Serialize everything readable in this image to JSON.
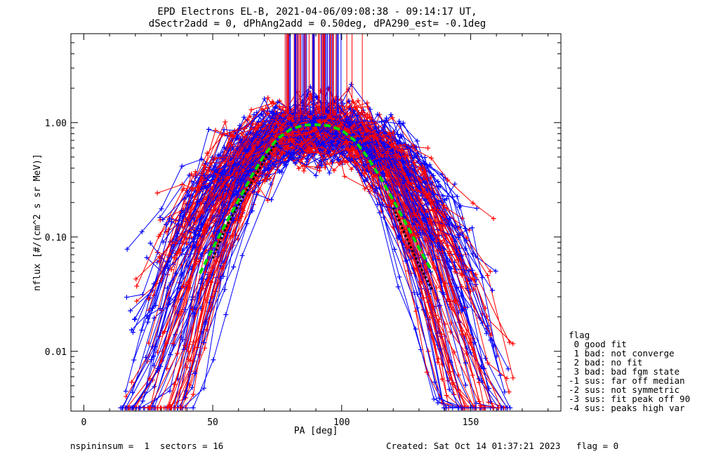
{
  "chart_data": {
    "type": "scatter",
    "title": [
      "EPD Electrons EL-B, 2021-04-06/09:08:38 - 09:14:17 UT,",
      "dSectr2add = 0, dPhAng2add = 0.50deg, dPA290_est=  -0.1deg"
    ],
    "xlabel": "PA [deg]",
    "ylabel": "nflux [#/(cm^2 s sr MeV)]",
    "xlim": [
      -5,
      185
    ],
    "ylim": [
      0.003,
      6
    ],
    "yscale": "log",
    "x_ticks": [
      0,
      50,
      100,
      150
    ],
    "x_tick_labels": [
      "0",
      "50",
      "100",
      "150"
    ],
    "y_ticks": [
      0.01,
      0.1,
      1.0
    ],
    "y_tick_labels": [
      "0.01",
      "0.10",
      "1.00"
    ],
    "grid": false,
    "series": [
      {
        "color": "#ff0000",
        "marker": "+",
        "note": "many PA-sector traces"
      },
      {
        "color": "#0000ff",
        "marker": "+",
        "note": "many PA-sector traces"
      },
      {
        "color": "#00dd00",
        "style": "dashed",
        "x": [
          45,
          50,
          55,
          60,
          65,
          70,
          75,
          80,
          85,
          90,
          95,
          100,
          105,
          110,
          115,
          120,
          125,
          130,
          135
        ],
        "y": [
          0.048,
          0.08,
          0.13,
          0.21,
          0.34,
          0.52,
          0.72,
          0.87,
          0.95,
          0.96,
          0.94,
          0.86,
          0.7,
          0.5,
          0.33,
          0.21,
          0.13,
          0.08,
          0.05
        ]
      },
      {
        "color": "#000000",
        "style": "dotted",
        "x": [
          50,
          55,
          60,
          65,
          70,
          75,
          120,
          125,
          130,
          135
        ],
        "y": [
          0.065,
          0.12,
          0.19,
          0.3,
          0.47,
          0.68,
          0.18,
          0.1,
          0.057,
          0.035
        ]
      }
    ],
    "legend": {
      "title": "flag",
      "entries": [
        " 0 good fit",
        " 1 bad: not converge",
        " 2 bad: no fit",
        " 3 bad: bad fgm state",
        "-1 sus: far off median",
        "-2 sus: not symmetric",
        "-3 sus: fit peak off 90",
        "-4 sus: peaks high var"
      ],
      "placement": "right"
    }
  },
  "footer": {
    "left": "nspininsum =  1  sectors = 16",
    "right": "Created: Sat Oct 14 01:37:21 2023   flag = 0"
  }
}
